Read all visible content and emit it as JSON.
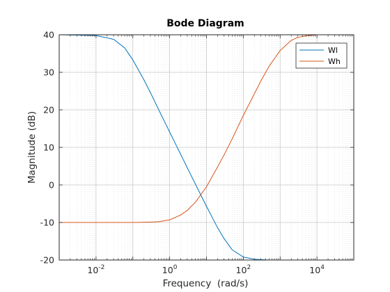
{
  "chart_data": {
    "type": "line",
    "title": "Bode Diagram",
    "xlabel": "Frequency  (rad/s)",
    "ylabel": "Magnitude (dB)",
    "xscale": "log",
    "xlim": [
      0.001,
      100000
    ],
    "ylim": [
      -20,
      40
    ],
    "yticks": [
      -20,
      -10,
      0,
      10,
      20,
      30,
      40
    ],
    "xtick_labels": [
      {
        "value": 0.01,
        "base": "10",
        "exp": "-2"
      },
      {
        "value": 1,
        "base": "10",
        "exp": "0"
      },
      {
        "value": 100,
        "base": "10",
        "exp": "2"
      },
      {
        "value": 10000,
        "base": "10",
        "exp": "4"
      }
    ],
    "grid": true,
    "minor_grid": true,
    "legend_position": "top-right",
    "series": [
      {
        "name": "Wl",
        "color": "#0072bd",
        "x": [
          0.001,
          0.01,
          0.03,
          0.06,
          0.1,
          0.2,
          0.3,
          0.5,
          1,
          2,
          3,
          5,
          10,
          20,
          30,
          50,
          100,
          200,
          500,
          1000,
          10000,
          100000
        ],
        "y": [
          40,
          39.8,
          38.8,
          36.5,
          33.3,
          28,
          24.6,
          20.1,
          14.1,
          8.1,
          4.6,
          0.2,
          -5.7,
          -11.4,
          -14.3,
          -17.3,
          -19.2,
          -19.8,
          -20,
          -20,
          -20,
          -20
        ]
      },
      {
        "name": "Wh",
        "color": "#d95319",
        "x": [
          0.001,
          0.01,
          0.1,
          0.3,
          0.5,
          1,
          2,
          3,
          5,
          10,
          20,
          30,
          50,
          100,
          200,
          300,
          500,
          1000,
          2000,
          3000,
          5000,
          10000,
          100000
        ],
        "y": [
          -10,
          -10,
          -10,
          -9.9,
          -9.8,
          -9.3,
          -8,
          -6.8,
          -4.6,
          -0.5,
          4.8,
          8,
          12.3,
          18.5,
          24.3,
          27.7,
          31.6,
          35.8,
          38.5,
          39.3,
          39.7,
          40,
          40
        ]
      }
    ]
  }
}
